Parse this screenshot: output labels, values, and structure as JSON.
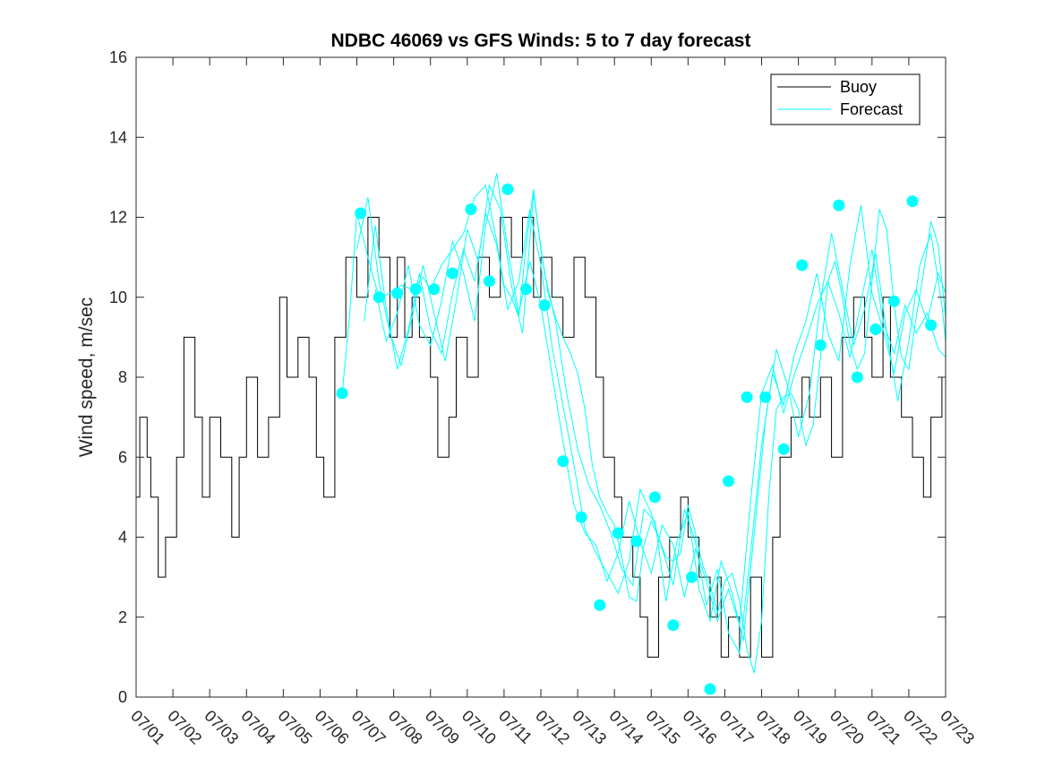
{
  "chart_data": {
    "type": "line",
    "title": "NDBC 46069 vs GFS Winds: 5 to 7 day forecast",
    "xlabel": "",
    "ylabel": "Wind speed, m/sec",
    "ylim": [
      0,
      16
    ],
    "yticks": [
      0,
      2,
      4,
      6,
      8,
      10,
      12,
      14,
      16
    ],
    "xlim": [
      "07/01",
      "07/23"
    ],
    "xticks": [
      "07/01",
      "07/02",
      "07/03",
      "07/04",
      "07/05",
      "07/06",
      "07/07",
      "07/08",
      "07/09",
      "07/10",
      "07/11",
      "07/12",
      "07/13",
      "07/14",
      "07/15",
      "07/16",
      "07/17",
      "07/18",
      "07/19",
      "07/20",
      "07/21",
      "07/22",
      "07/23"
    ],
    "grid": false,
    "legend": {
      "placement": "top-right",
      "entries": [
        "Buoy",
        "Forecast"
      ]
    },
    "colors": {
      "buoy": "#000000",
      "forecast": "#00ffff",
      "marker": "#00ffff"
    },
    "buoy": {
      "name": "Buoy",
      "x": [
        0.0,
        0.1,
        0.3,
        0.4,
        0.6,
        0.8,
        1.1,
        1.3,
        1.6,
        1.8,
        2.0,
        2.3,
        2.6,
        2.8,
        3.0,
        3.3,
        3.6,
        3.9,
        4.1,
        4.4,
        4.7,
        4.9,
        5.1,
        5.4,
        5.7,
        6.0,
        6.3,
        6.6,
        6.9,
        7.1,
        7.3,
        7.5,
        7.7,
        8.0,
        8.2,
        8.5,
        8.7,
        9.0,
        9.3,
        9.6,
        9.9,
        10.2,
        10.5,
        10.8,
        11.0,
        11.3,
        11.6,
        11.9,
        12.2,
        12.5,
        12.7,
        13.0,
        13.2,
        13.5,
        13.7,
        13.9,
        14.2,
        14.5,
        14.8,
        15.0,
        15.3,
        15.6,
        15.8,
        15.9,
        16.1,
        16.4,
        16.7,
        17.0,
        17.3,
        17.5,
        17.8,
        18.1,
        18.3,
        18.6,
        18.9,
        19.2,
        19.5,
        19.8,
        20.0,
        20.3,
        20.5,
        20.8,
        21.1,
        21.4,
        21.6,
        21.9,
        22.0
      ],
      "y": [
        5,
        7,
        6,
        5,
        3,
        4,
        6,
        9,
        7,
        5,
        7,
        6,
        4,
        6,
        8,
        6,
        7,
        10,
        8,
        9,
        8,
        6,
        5,
        9,
        11,
        10,
        12,
        11,
        9,
        11,
        9,
        10,
        9,
        8,
        6,
        7,
        9,
        8,
        11,
        10,
        12,
        11,
        12,
        10,
        11,
        10,
        9,
        11,
        10,
        8,
        6,
        5,
        4,
        3,
        2,
        1,
        3,
        4,
        5,
        4,
        3,
        2,
        3,
        1,
        2,
        1,
        3,
        1,
        4,
        6,
        7,
        8,
        7,
        8,
        6,
        9,
        10,
        9,
        8,
        10,
        8,
        7,
        6,
        5,
        7,
        8,
        9
      ]
    },
    "forecast_runs": [
      {
        "x": [
          5.6,
          5.8,
          6.0,
          6.3,
          6.6,
          6.9,
          7.2,
          7.5,
          7.8,
          8.0,
          8.3,
          8.6,
          8.9,
          9.2,
          9.5,
          9.8,
          10.0,
          10.2,
          10.4,
          10.6,
          10.8,
          11.0,
          11.2,
          11.4,
          11.6,
          11.8,
          12.0,
          12.2,
          12.4,
          12.6,
          12.8,
          13.0,
          13.2,
          13.4,
          13.6,
          13.8,
          14.0,
          14.2,
          14.4,
          14.6,
          14.8,
          15.0,
          15.2,
          15.4,
          15.6,
          15.8,
          16.0,
          16.2,
          16.4,
          16.6,
          16.8,
          17.0,
          17.2,
          17.4,
          17.6,
          17.8,
          18.0,
          18.2,
          18.4,
          18.6,
          18.8,
          19.0,
          19.2,
          19.4,
          19.6,
          19.8,
          20.0,
          20.2,
          20.4,
          20.6,
          20.8,
          21.0,
          21.2,
          21.4,
          21.6,
          21.8,
          22.0
        ],
        "y": [
          7.6,
          9.5,
          12.1,
          11,
          10,
          10.1,
          10.3,
          10.2,
          10.5,
          10.2,
          10.8,
          11.2,
          11.6,
          12.5,
          12.8,
          11.4,
          10.3,
          10,
          9.5,
          11.3,
          12.7,
          11.2,
          10.1,
          9.5,
          9,
          8.6,
          8.1,
          7.2,
          5.8,
          5,
          4.6,
          4.3,
          3.5,
          2.5,
          2.4,
          3.8,
          4.4,
          4,
          3.5,
          3.4,
          3.6,
          4.8,
          4.1,
          3.3,
          2.8,
          2.1,
          2.9,
          3.1,
          2.4,
          1.2,
          0.6,
          1.9,
          5.1,
          7.2,
          7.5,
          7.6,
          7.2,
          6.3,
          6.8,
          8.5,
          10.4,
          10.9,
          10,
          8.8,
          8.2,
          8.6,
          10.4,
          12.2,
          11.7,
          9.8,
          8.5,
          8.2,
          9.5,
          10.6,
          11.9,
          11.3,
          9.5
        ]
      },
      {
        "x": [
          6.0,
          6.3,
          6.6,
          6.9,
          7.2,
          7.5,
          7.8,
          8.1,
          8.4,
          8.7,
          9.0,
          9.3,
          9.6,
          9.9,
          10.2,
          10.5,
          10.8,
          11.1,
          11.4,
          11.7,
          12.0,
          12.3,
          12.6,
          12.9,
          13.2,
          13.5,
          13.8,
          14.1,
          14.4,
          14.7,
          15.0,
          15.3,
          15.6,
          15.9,
          16.2,
          16.5,
          16.8,
          17.1,
          17.4,
          17.7,
          18.0,
          18.3,
          18.6,
          18.9,
          19.2,
          19.5,
          19.8,
          20.1,
          20.4,
          20.7,
          21.0,
          21.3,
          21.6,
          21.9,
          22.0
        ],
        "y": [
          11.2,
          12.5,
          10.4,
          9.1,
          8.3,
          9.5,
          10.8,
          9.6,
          8.4,
          9.9,
          11.7,
          10.9,
          12.8,
          12.2,
          10.3,
          9.1,
          12.6,
          10.6,
          9.4,
          7.6,
          6.2,
          5.3,
          4.8,
          4.1,
          3.2,
          2.8,
          4.7,
          4.4,
          2.4,
          3.9,
          4.6,
          2.7,
          1.9,
          3.4,
          2.6,
          1.4,
          4.1,
          6.9,
          8.7,
          7.8,
          6.5,
          7.6,
          9.9,
          11.6,
          10.2,
          8.8,
          9.7,
          11.1,
          9.1,
          7.4,
          8.9,
          10.8,
          11.6,
          9.8,
          8.9
        ]
      },
      {
        "x": [
          6.2,
          6.5,
          6.8,
          7.1,
          7.4,
          7.7,
          8.0,
          8.3,
          8.6,
          8.9,
          9.2,
          9.5,
          9.8,
          10.1,
          10.4,
          10.7,
          11.0,
          11.3,
          11.6,
          11.9,
          12.2,
          12.5,
          12.8,
          13.1,
          13.4,
          13.7,
          14.0,
          14.3,
          14.6,
          14.9,
          15.2,
          15.5,
          15.8,
          16.1,
          16.4,
          16.7,
          17.0,
          17.3,
          17.6,
          17.9,
          18.2,
          18.5,
          18.8,
          19.1,
          19.4,
          19.7,
          20.0,
          20.3,
          20.6,
          20.9,
          21.2,
          21.5,
          21.8,
          22.0
        ],
        "y": [
          9.4,
          11.8,
          9.7,
          8.2,
          9.2,
          10.6,
          9.2,
          8.6,
          10.1,
          11.2,
          10.4,
          12.1,
          11.3,
          9.7,
          10.4,
          12.2,
          10.8,
          8.8,
          7.3,
          5.8,
          4.2,
          3.6,
          3.1,
          2.6,
          3.4,
          5.2,
          4.6,
          3.7,
          2.8,
          4.7,
          3.9,
          2.3,
          3.2,
          1.6,
          1.1,
          3.6,
          6.3,
          8.1,
          7.3,
          8.6,
          9.4,
          10.6,
          9.1,
          8.4,
          10.8,
          12.3,
          10.1,
          9.2,
          8.1,
          9.6,
          10.2,
          9.4,
          10.6,
          10.1
        ]
      },
      {
        "x": [
          6.5,
          6.8,
          7.1,
          7.4,
          7.7,
          8.0,
          8.3,
          8.6,
          8.9,
          9.2,
          9.5,
          9.8,
          10.1,
          10.4,
          10.7,
          11.0,
          11.3,
          11.6,
          11.9,
          12.2,
          12.5,
          12.8,
          13.1,
          13.4,
          13.7,
          14.0,
          14.3,
          14.6,
          14.9,
          15.2,
          15.5,
          15.8,
          16.1,
          16.4,
          16.7,
          17.0,
          17.3,
          17.6,
          17.9,
          18.2,
          18.5,
          18.8,
          19.1,
          19.4,
          19.7,
          20.0,
          20.3,
          20.6,
          20.9,
          21.2,
          21.5,
          21.8,
          22.0
        ],
        "y": [
          10.2,
          8.9,
          9.6,
          10.8,
          9.3,
          8.8,
          9.9,
          11.4,
          10.6,
          9.4,
          11.8,
          13.1,
          11.2,
          9.6,
          10.9,
          9.8,
          8.1,
          6.4,
          4.8,
          4.1,
          3.8,
          2.9,
          3.6,
          4.9,
          3.9,
          3.1,
          4.3,
          3.8,
          2.5,
          3.7,
          2.9,
          1.9,
          2.7,
          1.8,
          4.9,
          7.6,
          8.3,
          7.1,
          8.1,
          8.9,
          9.8,
          10.4,
          9.6,
          8.5,
          9.9,
          11.2,
          9.4,
          8.6,
          9.8,
          9.1,
          9.6,
          8.7,
          8.5
        ]
      }
    ],
    "forecast_markers": {
      "x": [
        5.6,
        6.1,
        6.6,
        7.1,
        7.6,
        8.1,
        8.6,
        9.1,
        9.6,
        10.1,
        10.6,
        11.1,
        11.6,
        12.1,
        12.6,
        13.1,
        13.6,
        14.1,
        14.6,
        15.1,
        15.6,
        16.1,
        16.6,
        17.1,
        17.6,
        18.1,
        18.6,
        19.1,
        19.6,
        20.1,
        20.6,
        21.1,
        21.6
      ],
      "y": [
        7.6,
        12.1,
        10.0,
        10.1,
        10.2,
        10.2,
        10.6,
        12.2,
        10.4,
        12.7,
        10.2,
        9.8,
        5.9,
        4.5,
        2.3,
        4.1,
        3.9,
        5.0,
        1.8,
        3.0,
        0.2,
        5.4,
        7.5,
        7.5,
        6.2,
        10.8,
        8.8,
        12.3,
        8.0,
        9.2,
        9.9,
        12.4,
        9.3
      ]
    }
  }
}
